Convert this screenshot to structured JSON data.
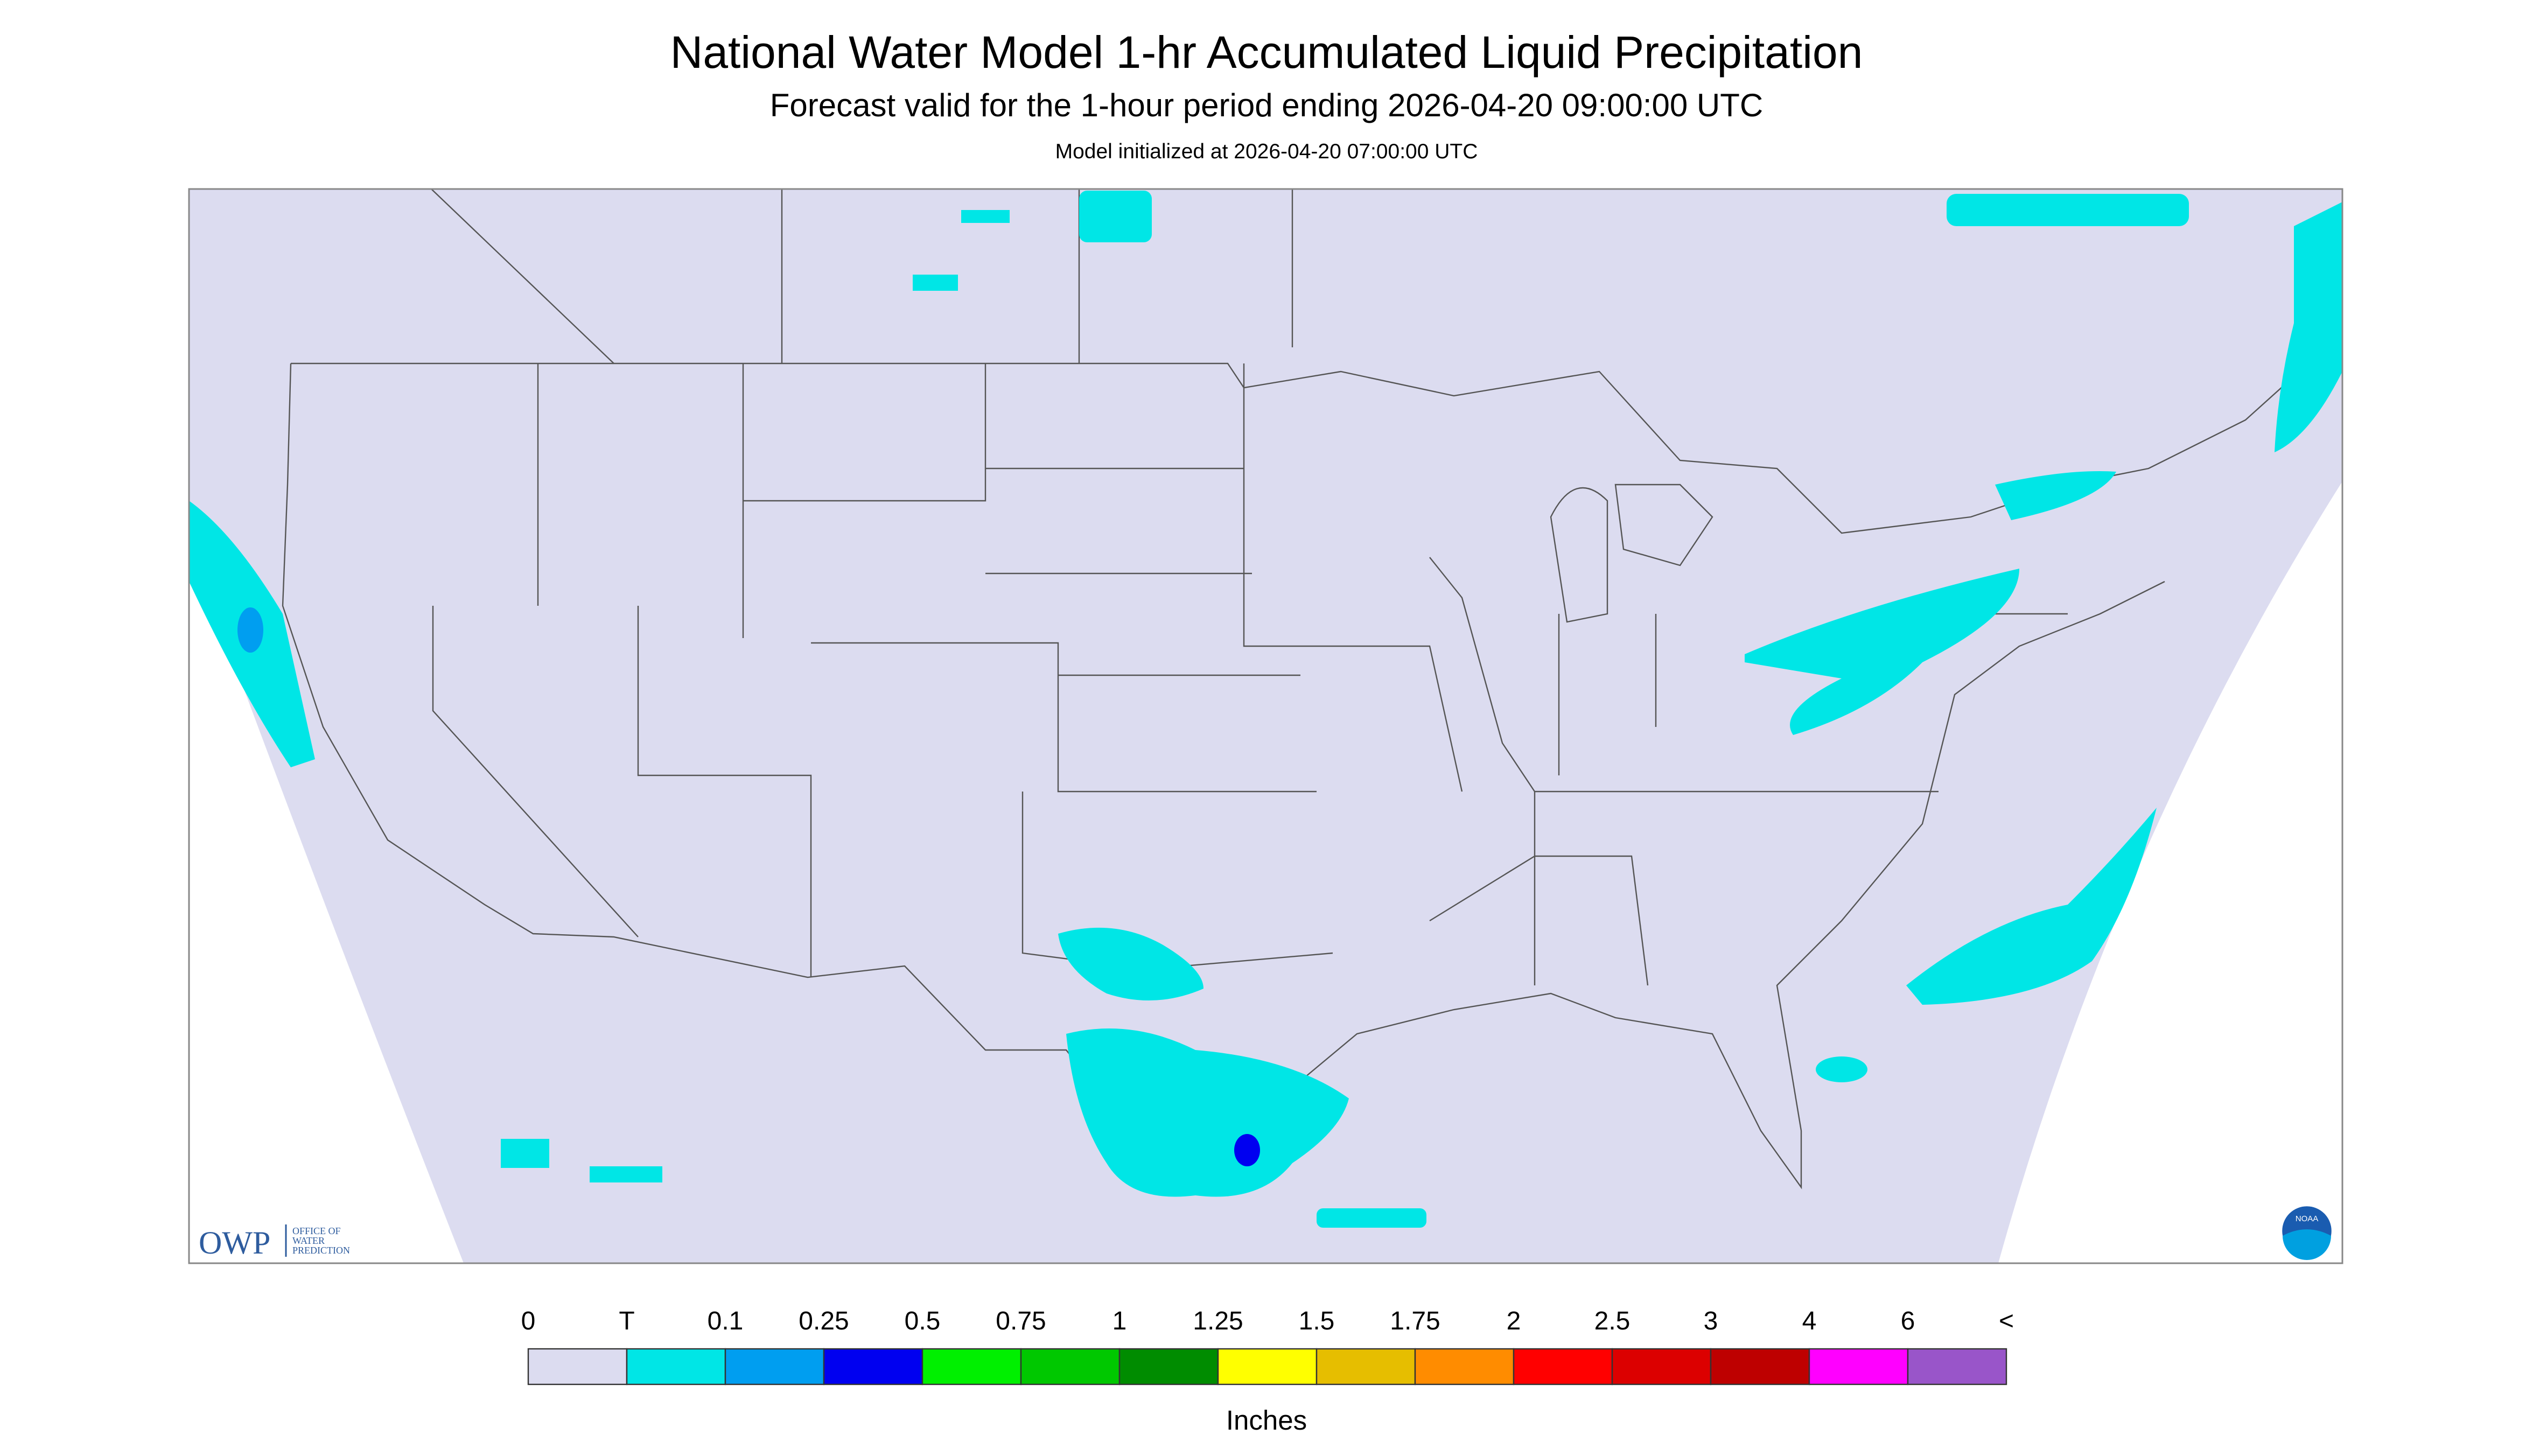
{
  "header": {
    "title": "National Water Model 1-hr Accumulated Liquid Precipitation",
    "subtitle": "Forecast valid for the 1-hour period ending 2026-04-20 09:00:00 UTC",
    "note": "Model initialized at 2026-04-20 07:00:00 UTC"
  },
  "legend": {
    "labels": [
      "0",
      "T",
      "0.1",
      "0.25",
      "0.5",
      "0.75",
      "1",
      "1.25",
      "1.5",
      "1.75",
      "2",
      "2.5",
      "3",
      "4",
      "6",
      "<"
    ],
    "colors": [
      "#dcdcf0",
      "#00e6e6",
      "#009ef0",
      "#0000f0",
      "#00f000",
      "#00c800",
      "#008c00",
      "#ffff00",
      "#e6be00",
      "#ff8c00",
      "#ff0000",
      "#dc0000",
      "#be0000",
      "#ff00ff",
      "#9955c9"
    ],
    "unit": "Inches"
  },
  "logos": {
    "owp": "OWP",
    "owp_line1": "OFFICE OF",
    "owp_line2": "WATER",
    "owp_line3": "PREDICTION",
    "noaa": "NOAA"
  }
}
